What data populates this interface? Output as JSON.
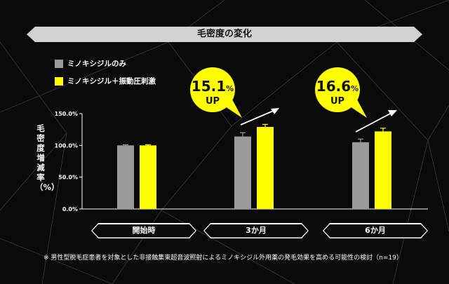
{
  "title": "毛密度の変化",
  "legend": [
    {
      "label": "ミノキシジルのみ",
      "color": "#9a9a9a"
    },
    {
      "label": "ミノキシジル＋振動圧刺激",
      "color": "#ffff00"
    }
  ],
  "ylabel": "毛密度増減率（%）",
  "callouts": [
    {
      "value": "15.1",
      "unit": "%",
      "label": "UP"
    },
    {
      "value": "16.6",
      "unit": "%",
      "label": "UP"
    }
  ],
  "footnote": "※ 男性型脱毛症患者を対象とした非接触集束超音波照射によるミノキシジル外用薬の発毛効果を高める可能性の検討（n=19）",
  "colors": {
    "background": "#0a0a0a",
    "gray_bar": "#9a9a9a",
    "yellow_bar": "#ffff00",
    "banner": "#d2d2d2"
  },
  "chart_data": {
    "type": "bar",
    "categories": [
      "開始時",
      "3か月",
      "6か月"
    ],
    "series": [
      {
        "name": "ミノキシジルのみ",
        "values": [
          100,
          114,
          105
        ],
        "errors": [
          1,
          6,
          5
        ]
      },
      {
        "name": "ミノキシジル＋振動圧刺激",
        "values": [
          100,
          129,
          122
        ],
        "errors": [
          1,
          4,
          5
        ]
      }
    ],
    "yticks": [
      "0.0%",
      "50.0%",
      "100.0%",
      "150.0%"
    ],
    "ylim": [
      0,
      150
    ],
    "grid": false,
    "legend_position": "top-left"
  }
}
